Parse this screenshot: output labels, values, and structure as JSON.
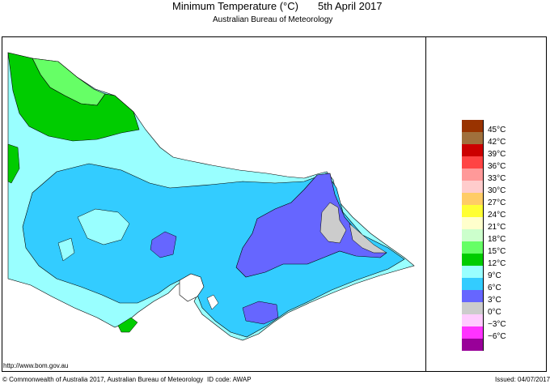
{
  "header": {
    "title": "Minimum Temperature (°C)",
    "date": "5th April 2017",
    "subtitle": "Australian Bureau of Meteorology"
  },
  "legend": {
    "items": [
      {
        "label": "45°C",
        "color": "#993300"
      },
      {
        "label": "42°C",
        "color": "#a0703c"
      },
      {
        "label": "39°C",
        "color": "#cc0000"
      },
      {
        "label": "36°C",
        "color": "#ff4444"
      },
      {
        "label": "33°C",
        "color": "#ff9999"
      },
      {
        "label": "30°C",
        "color": "#ffcccc"
      },
      {
        "label": "27°C",
        "color": "#ffcc66"
      },
      {
        "label": "24°C",
        "color": "#ffff33"
      },
      {
        "label": "21°C",
        "color": "#ffffcc"
      },
      {
        "label": "18°C",
        "color": "#ccffcc"
      },
      {
        "label": "15°C",
        "color": "#66ff66"
      },
      {
        "label": "12°C",
        "color": "#00cc00"
      },
      {
        "label": "9°C",
        "color": "#99ffff"
      },
      {
        "label": "6°C",
        "color": "#33ccff"
      },
      {
        "label": "3°C",
        "color": "#6666ff"
      },
      {
        "label": "0°C",
        "color": "#cccccc"
      },
      {
        "label": "−3°C",
        "color": "#ffccff"
      },
      {
        "label": "−6°C",
        "color": "#ff33ff"
      },
      {
        "label": "",
        "color": "#990099"
      }
    ]
  },
  "map_colors": {
    "bg": "#99ffff",
    "green_light": "#66ff66",
    "green_dark": "#00cc00",
    "blue": "#33ccff",
    "purple": "#6666ff",
    "gray": "#cccccc"
  },
  "footer": {
    "url": "http://www.bom.gov.au",
    "copyright": "© Commonwealth of Australia 2017, Australian Bureau of Meteorology",
    "id_code": "ID code: AWAP",
    "issued": "Issued: 04/07/2017"
  }
}
